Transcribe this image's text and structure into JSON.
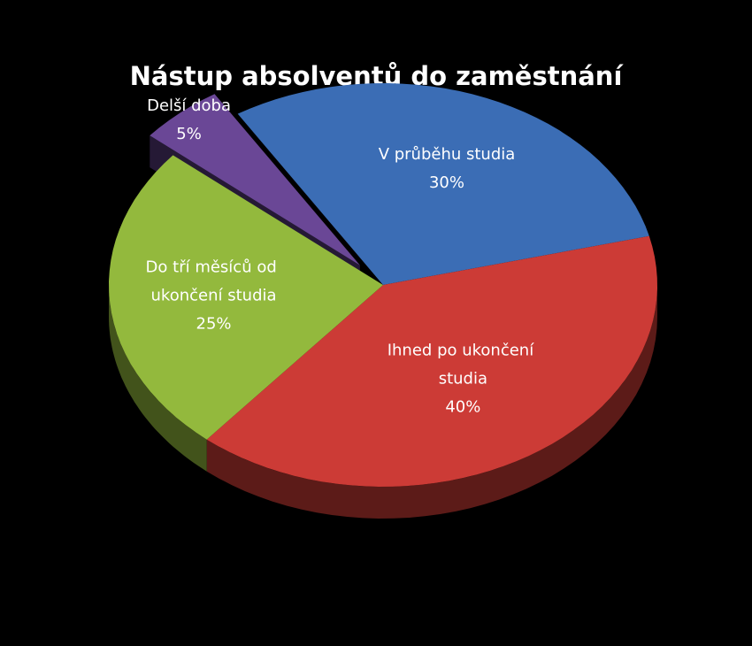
{
  "chart_data": {
    "type": "pie",
    "title": "Nástup absolventů do zaměstnání",
    "categories": [
      "V průběhu studia",
      "Ihned po ukončení studia",
      "Do tří měsíců od ukončení studia",
      "Delší doba"
    ],
    "values": [
      30,
      40,
      25,
      5
    ],
    "value_labels": [
      "30%",
      "40%",
      "25%",
      "5%"
    ],
    "colors": [
      "#3b6db5",
      "#cc3b36",
      "#93b93d",
      "#6a4796"
    ]
  }
}
